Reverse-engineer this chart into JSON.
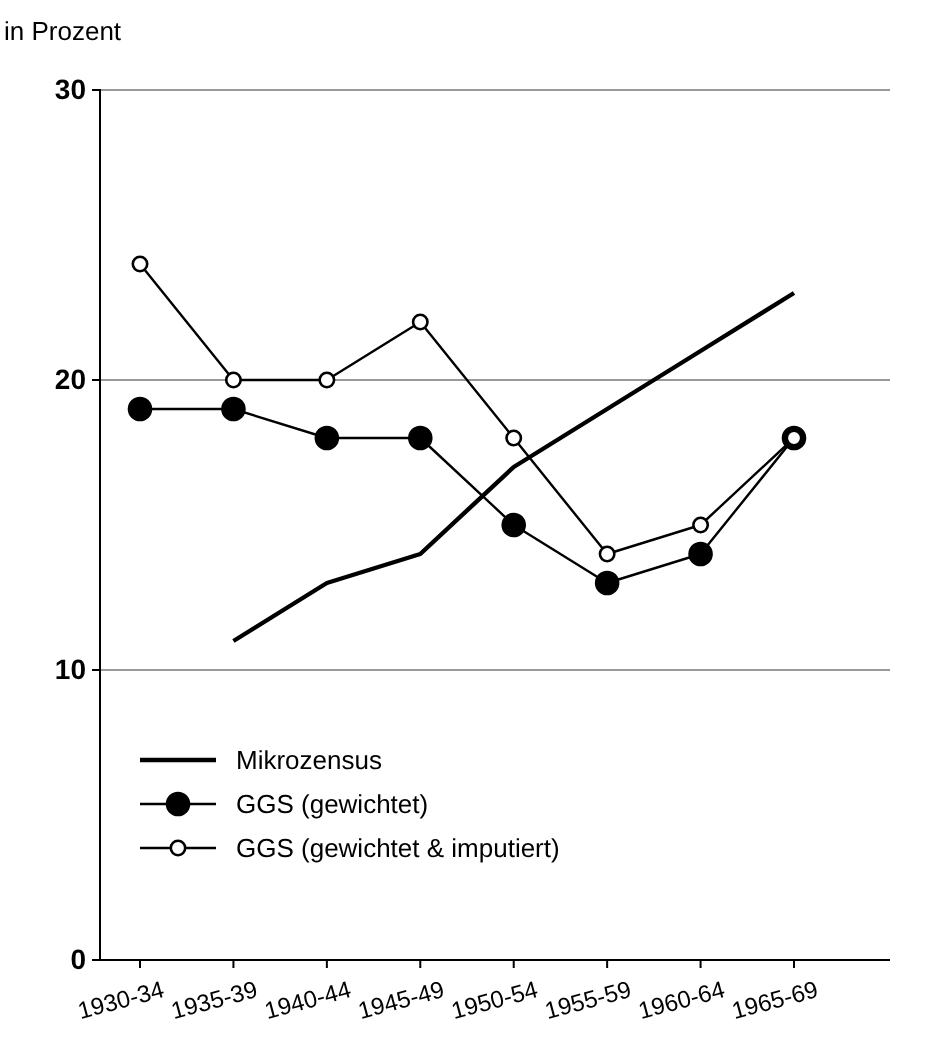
{
  "chart_data": {
    "type": "line",
    "ylabel": "in Prozent",
    "categories": [
      "1930-34",
      "1935-39",
      "1940-44",
      "1945-49",
      "1950-54",
      "1955-59",
      "1960-64",
      "1965-69"
    ],
    "series": [
      {
        "name": "Mikrozensus",
        "color": "#000000",
        "marker": "none",
        "values": [
          null,
          11,
          13,
          14,
          17,
          19,
          21,
          23
        ]
      },
      {
        "name": "GGS (gewichtet)",
        "color": "#000000",
        "marker": "circle",
        "values": [
          19,
          19,
          18,
          18,
          15,
          13,
          14,
          18
        ]
      },
      {
        "name": "GGS (gewichtet & imputiert)",
        "color": "#000000",
        "marker": "open-circle",
        "values": [
          24,
          20,
          20,
          22,
          18,
          14,
          15,
          18
        ]
      }
    ],
    "ylim": [
      0,
      30
    ],
    "yticks": [
      0,
      10,
      20,
      30
    ],
    "grid": "y",
    "legend": "bottom left"
  }
}
